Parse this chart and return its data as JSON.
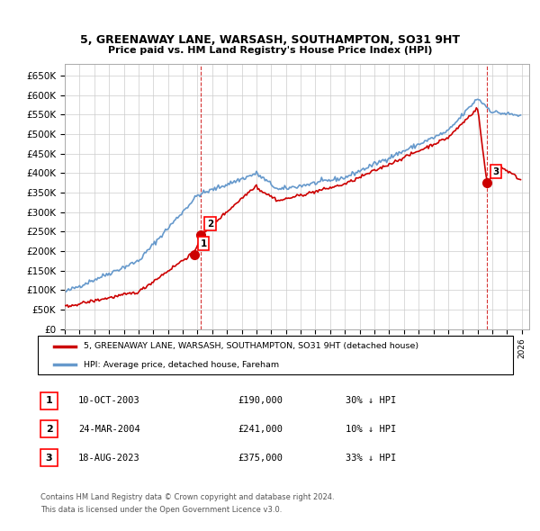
{
  "title": "5, GREENAWAY LANE, WARSASH, SOUTHAMPTON, SO31 9HT",
  "subtitle": "Price paid vs. HM Land Registry's House Price Index (HPI)",
  "ylim": [
    0,
    680000
  ],
  "yticks": [
    0,
    50000,
    100000,
    150000,
    200000,
    250000,
    300000,
    350000,
    400000,
    450000,
    500000,
    550000,
    600000,
    650000
  ],
  "ytick_labels": [
    "£0",
    "£50K",
    "£100K",
    "£150K",
    "£200K",
    "£250K",
    "£300K",
    "£350K",
    "£400K",
    "£450K",
    "£500K",
    "£550K",
    "£600K",
    "£650K"
  ],
  "xlim_start": 1995.0,
  "xlim_end": 2026.5,
  "sale_color": "#cc0000",
  "hpi_color": "#6699cc",
  "sale_dates": [
    2003.78,
    2004.23,
    2023.63
  ],
  "sale_prices": [
    190000,
    241000,
    375000
  ],
  "sale_labels": [
    "1",
    "2",
    "3"
  ],
  "vline_dates": [
    2004.23,
    2023.63
  ],
  "annotation_entries": [
    {
      "num": "1",
      "date": "10-OCT-2003",
      "price": "£190,000",
      "hpi": "30% ↓ HPI"
    },
    {
      "num": "2",
      "date": "24-MAR-2004",
      "price": "£241,000",
      "hpi": "10% ↓ HPI"
    },
    {
      "num": "3",
      "date": "18-AUG-2023",
      "price": "£375,000",
      "hpi": "33% ↓ HPI"
    }
  ],
  "legend_sale": "5, GREENAWAY LANE, WARSASH, SOUTHAMPTON, SO31 9HT (detached house)",
  "legend_hpi": "HPI: Average price, detached house, Fareham",
  "footnote1": "Contains HM Land Registry data © Crown copyright and database right 2024.",
  "footnote2": "This data is licensed under the Open Government Licence v3.0.",
  "background_color": "#ffffff",
  "grid_color": "#cccccc"
}
